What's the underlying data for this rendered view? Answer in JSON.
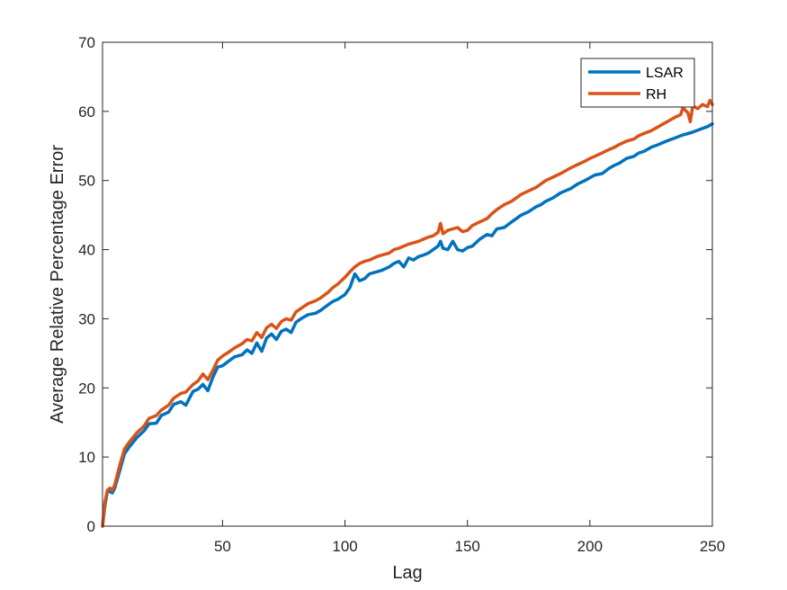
{
  "chart_data": {
    "type": "line",
    "xlabel": "Lag",
    "ylabel": "Average Relative Percentage Error",
    "xlim": [
      1,
      250
    ],
    "ylim": [
      0,
      70
    ],
    "xticks": [
      50,
      100,
      150,
      200,
      250
    ],
    "yticks": [
      0,
      10,
      20,
      30,
      40,
      50,
      60,
      70
    ],
    "grid": false,
    "legend_position": "top-right",
    "series": [
      {
        "name": "LSAR",
        "color": "#0072BD",
        "points": [
          [
            1,
            0
          ],
          [
            2,
            3
          ],
          [
            3,
            5
          ],
          [
            4,
            5
          ],
          [
            5,
            4.8
          ],
          [
            6,
            5.5
          ],
          [
            8,
            8
          ],
          [
            10,
            10.5
          ],
          [
            12,
            11.5
          ],
          [
            15,
            12.8
          ],
          [
            18,
            13.8
          ],
          [
            20,
            14.8
          ],
          [
            23,
            14.9
          ],
          [
            25,
            16
          ],
          [
            28,
            16.5
          ],
          [
            30,
            17.6
          ],
          [
            33,
            18
          ],
          [
            35,
            17.5
          ],
          [
            38,
            19.5
          ],
          [
            40,
            19.8
          ],
          [
            42,
            20.5
          ],
          [
            44,
            19.6
          ],
          [
            46,
            21.5
          ],
          [
            48,
            23
          ],
          [
            50,
            23.2
          ],
          [
            53,
            24
          ],
          [
            55,
            24.5
          ],
          [
            58,
            24.8
          ],
          [
            60,
            25.5
          ],
          [
            62,
            25
          ],
          [
            64,
            26.5
          ],
          [
            66,
            25.3
          ],
          [
            68,
            27.2
          ],
          [
            70,
            27.8
          ],
          [
            72,
            27
          ],
          [
            74,
            28.2
          ],
          [
            76,
            28.5
          ],
          [
            78,
            28
          ],
          [
            80,
            29.5
          ],
          [
            82,
            30
          ],
          [
            85,
            30.6
          ],
          [
            88,
            30.8
          ],
          [
            90,
            31.2
          ],
          [
            93,
            32
          ],
          [
            95,
            32.5
          ],
          [
            97,
            32.8
          ],
          [
            100,
            33.5
          ],
          [
            102,
            34.5
          ],
          [
            104,
            36.5
          ],
          [
            106,
            35.5
          ],
          [
            108,
            35.8
          ],
          [
            110,
            36.5
          ],
          [
            113,
            36.8
          ],
          [
            115,
            37
          ],
          [
            118,
            37.5
          ],
          [
            120,
            38
          ],
          [
            122,
            38.3
          ],
          [
            124,
            37.5
          ],
          [
            126,
            38.8
          ],
          [
            128,
            38.5
          ],
          [
            130,
            39
          ],
          [
            132,
            39.2
          ],
          [
            134,
            39.5
          ],
          [
            136,
            40
          ],
          [
            138,
            40.5
          ],
          [
            139,
            41.2
          ],
          [
            140,
            40.2
          ],
          [
            142,
            40
          ],
          [
            144,
            41.2
          ],
          [
            146,
            40
          ],
          [
            148,
            39.8
          ],
          [
            150,
            40.3
          ],
          [
            152,
            40.5
          ],
          [
            155,
            41.5
          ],
          [
            158,
            42.2
          ],
          [
            160,
            42
          ],
          [
            162,
            43
          ],
          [
            165,
            43.2
          ],
          [
            168,
            44
          ],
          [
            170,
            44.5
          ],
          [
            172,
            45
          ],
          [
            175,
            45.5
          ],
          [
            178,
            46.2
          ],
          [
            180,
            46.5
          ],
          [
            182,
            47
          ],
          [
            185,
            47.5
          ],
          [
            188,
            48.2
          ],
          [
            190,
            48.5
          ],
          [
            192,
            48.8
          ],
          [
            195,
            49.5
          ],
          [
            198,
            50
          ],
          [
            200,
            50.4
          ],
          [
            202,
            50.8
          ],
          [
            205,
            51
          ],
          [
            208,
            51.8
          ],
          [
            210,
            52.2
          ],
          [
            212,
            52.5
          ],
          [
            215,
            53.2
          ],
          [
            218,
            53.5
          ],
          [
            220,
            54
          ],
          [
            222,
            54.2
          ],
          [
            225,
            54.8
          ],
          [
            228,
            55.2
          ],
          [
            230,
            55.5
          ],
          [
            232,
            55.8
          ],
          [
            235,
            56.2
          ],
          [
            238,
            56.6
          ],
          [
            240,
            56.8
          ],
          [
            242,
            57
          ],
          [
            245,
            57.4
          ],
          [
            248,
            57.8
          ],
          [
            250,
            58.2
          ]
        ]
      },
      {
        "name": "RH",
        "color": "#D95319",
        "points": [
          [
            1,
            0
          ],
          [
            2,
            3.5
          ],
          [
            3,
            5.2
          ],
          [
            4,
            5.5
          ],
          [
            5,
            5.2
          ],
          [
            6,
            6
          ],
          [
            8,
            8.8
          ],
          [
            10,
            11.2
          ],
          [
            12,
            12.2
          ],
          [
            15,
            13.5
          ],
          [
            18,
            14.5
          ],
          [
            20,
            15.6
          ],
          [
            23,
            16
          ],
          [
            25,
            16.8
          ],
          [
            28,
            17.5
          ],
          [
            30,
            18.5
          ],
          [
            33,
            19.2
          ],
          [
            35,
            19.4
          ],
          [
            38,
            20.5
          ],
          [
            40,
            21
          ],
          [
            42,
            22
          ],
          [
            44,
            21.2
          ],
          [
            46,
            22.5
          ],
          [
            48,
            24
          ],
          [
            50,
            24.6
          ],
          [
            53,
            25.3
          ],
          [
            55,
            25.8
          ],
          [
            58,
            26.4
          ],
          [
            60,
            27
          ],
          [
            62,
            26.8
          ],
          [
            64,
            28
          ],
          [
            66,
            27.3
          ],
          [
            68,
            28.7
          ],
          [
            70,
            29.2
          ],
          [
            72,
            28.6
          ],
          [
            74,
            29.6
          ],
          [
            76,
            30
          ],
          [
            78,
            29.8
          ],
          [
            80,
            31
          ],
          [
            82,
            31.5
          ],
          [
            85,
            32.2
          ],
          [
            88,
            32.6
          ],
          [
            90,
            33
          ],
          [
            93,
            33.8
          ],
          [
            95,
            34.5
          ],
          [
            97,
            35
          ],
          [
            100,
            36
          ],
          [
            102,
            36.8
          ],
          [
            104,
            37.5
          ],
          [
            106,
            38
          ],
          [
            108,
            38.3
          ],
          [
            110,
            38.5
          ],
          [
            113,
            39
          ],
          [
            115,
            39.2
          ],
          [
            118,
            39.5
          ],
          [
            120,
            40
          ],
          [
            122,
            40.2
          ],
          [
            124,
            40.5
          ],
          [
            126,
            40.8
          ],
          [
            128,
            41
          ],
          [
            130,
            41.2
          ],
          [
            132,
            41.5
          ],
          [
            134,
            41.8
          ],
          [
            136,
            42
          ],
          [
            138,
            42.5
          ],
          [
            139,
            43.8
          ],
          [
            140,
            42.3
          ],
          [
            142,
            42.8
          ],
          [
            144,
            43
          ],
          [
            146,
            43.2
          ],
          [
            148,
            42.6
          ],
          [
            150,
            42.8
          ],
          [
            152,
            43.5
          ],
          [
            155,
            44
          ],
          [
            158,
            44.5
          ],
          [
            160,
            45.2
          ],
          [
            162,
            45.8
          ],
          [
            165,
            46.5
          ],
          [
            168,
            47
          ],
          [
            170,
            47.5
          ],
          [
            172,
            48
          ],
          [
            175,
            48.5
          ],
          [
            178,
            49
          ],
          [
            180,
            49.5
          ],
          [
            182,
            50
          ],
          [
            185,
            50.5
          ],
          [
            188,
            51
          ],
          [
            190,
            51.4
          ],
          [
            192,
            51.8
          ],
          [
            195,
            52.3
          ],
          [
            198,
            52.8
          ],
          [
            200,
            53.2
          ],
          [
            202,
            53.5
          ],
          [
            205,
            54
          ],
          [
            208,
            54.5
          ],
          [
            210,
            54.8
          ],
          [
            212,
            55.2
          ],
          [
            215,
            55.7
          ],
          [
            218,
            56
          ],
          [
            220,
            56.5
          ],
          [
            222,
            56.8
          ],
          [
            225,
            57.2
          ],
          [
            228,
            57.8
          ],
          [
            230,
            58.2
          ],
          [
            232,
            58.6
          ],
          [
            235,
            59.2
          ],
          [
            237,
            59.5
          ],
          [
            238,
            60.5
          ],
          [
            240,
            59.8
          ],
          [
            241,
            58.5
          ],
          [
            242,
            60.8
          ],
          [
            244,
            60.4
          ],
          [
            246,
            61
          ],
          [
            248,
            60.7
          ],
          [
            249,
            61.6
          ],
          [
            250,
            61
          ]
        ]
      }
    ]
  }
}
